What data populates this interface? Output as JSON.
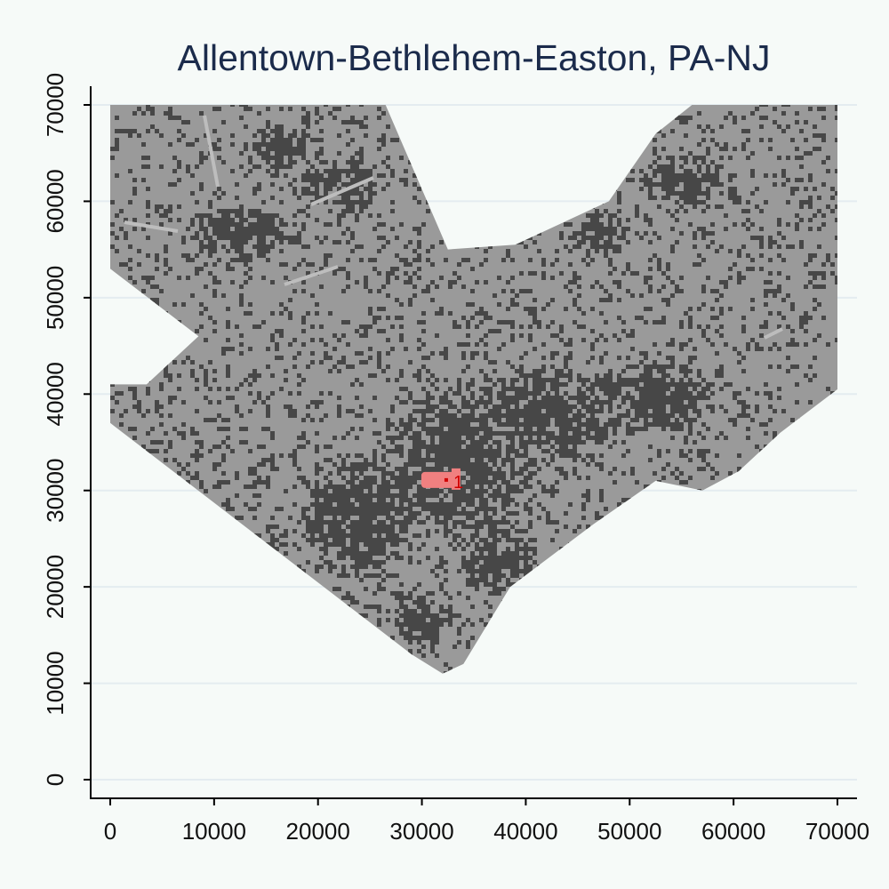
{
  "chart_data": {
    "type": "heatmap",
    "title": "Allentown-Bethlehem-Easton, PA-NJ",
    "xlabel": "",
    "ylabel": "",
    "xlim": [
      0,
      70000
    ],
    "ylim": [
      0,
      70000
    ],
    "x_ticks": [
      "0",
      "10000",
      "20000",
      "30000",
      "40000",
      "50000",
      "60000",
      "70000"
    ],
    "y_ticks": [
      "0",
      "10000",
      "20000",
      "30000",
      "40000",
      "50000",
      "60000",
      "70000"
    ],
    "grid": "horizontal",
    "region_polygon": [
      [
        0,
        70000
      ],
      [
        4000,
        70000
      ],
      [
        26500,
        70000
      ],
      [
        32500,
        55000
      ],
      [
        39000,
        55500
      ],
      [
        48000,
        60000
      ],
      [
        52500,
        67000
      ],
      [
        56000,
        70000
      ],
      [
        70000,
        70000
      ],
      [
        70000,
        40500
      ],
      [
        64500,
        36000
      ],
      [
        60500,
        32000
      ],
      [
        57000,
        30000
      ],
      [
        52500,
        31000
      ],
      [
        46500,
        26500
      ],
      [
        38500,
        20000
      ],
      [
        34000,
        12000
      ],
      [
        32000,
        11000
      ],
      [
        29000,
        13000
      ],
      [
        0,
        37000
      ],
      [
        0,
        41000
      ],
      [
        3500,
        41000
      ],
      [
        8500,
        46000
      ],
      [
        0,
        53000
      ]
    ],
    "dense_areas": [
      {
        "x": 33500,
        "y": 33000,
        "rx": 7500,
        "ry": 8000
      },
      {
        "x": 42000,
        "y": 38000,
        "rx": 9000,
        "ry": 5000
      },
      {
        "x": 52000,
        "y": 40000,
        "rx": 6000,
        "ry": 4000
      },
      {
        "x": 24000,
        "y": 28000,
        "rx": 6000,
        "ry": 7000
      },
      {
        "x": 12000,
        "y": 57000,
        "rx": 5000,
        "ry": 3000
      },
      {
        "x": 22000,
        "y": 62000,
        "rx": 4000,
        "ry": 3000
      },
      {
        "x": 16500,
        "y": 66000,
        "rx": 3000,
        "ry": 2500
      },
      {
        "x": 55000,
        "y": 62000,
        "rx": 4000,
        "ry": 3000
      },
      {
        "x": 47000,
        "y": 57000,
        "rx": 3000,
        "ry": 2500
      },
      {
        "x": 37000,
        "y": 23000,
        "rx": 4000,
        "ry": 3500
      },
      {
        "x": 30000,
        "y": 17000,
        "rx": 3000,
        "ry": 3000
      }
    ],
    "highlight": {
      "x": 32000,
      "y": 31000,
      "label": "1",
      "color": "#f08080"
    },
    "colors": {
      "background": "#f6faf8",
      "land": "#9a9a9a",
      "developed": "#474747",
      "water": "#bdbdbd",
      "highlight": "#f08080",
      "highlight_center": "#d00000",
      "title": "#1b2b4b"
    }
  }
}
